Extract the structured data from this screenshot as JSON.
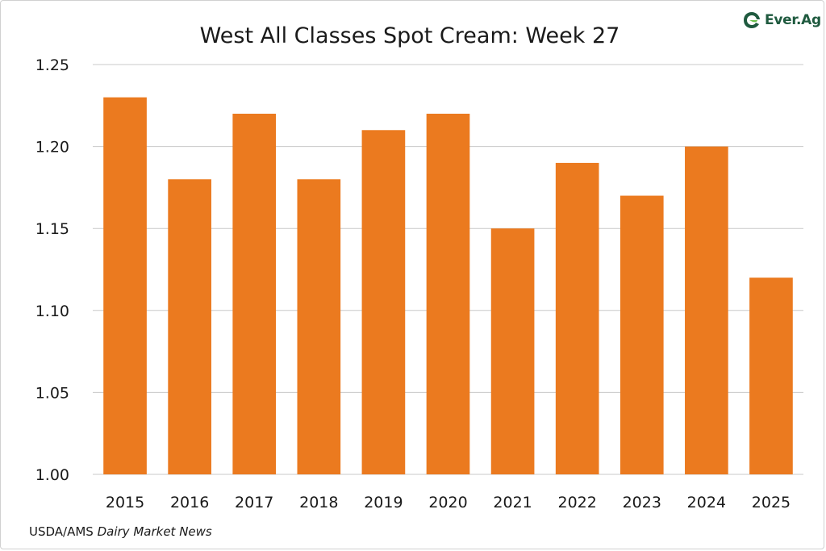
{
  "brand": {
    "logo_text_prefix": "Ever.",
    "logo_text_suffix": "Ag",
    "logo_color": "#1f5a3f",
    "logo_accent": "#6cc04a"
  },
  "source": {
    "prefix": "USDA/AMS ",
    "publication": "Dairy Market News"
  },
  "chart_data": {
    "type": "bar",
    "title": "West All Classes Spot Cream: Week 27",
    "xlabel": "",
    "ylabel": "",
    "categories": [
      "2015",
      "2016",
      "2017",
      "2018",
      "2019",
      "2020",
      "2021",
      "2022",
      "2023",
      "2024",
      "2025"
    ],
    "values": [
      1.23,
      1.18,
      1.22,
      1.18,
      1.21,
      1.22,
      1.15,
      1.19,
      1.17,
      1.2,
      1.12
    ],
    "ylim": [
      1.0,
      1.25
    ],
    "yticks": [
      "1.00",
      "1.05",
      "1.10",
      "1.15",
      "1.20",
      "1.25"
    ],
    "bar_color": "#eb7a1f",
    "grid": true,
    "legend": "none"
  }
}
